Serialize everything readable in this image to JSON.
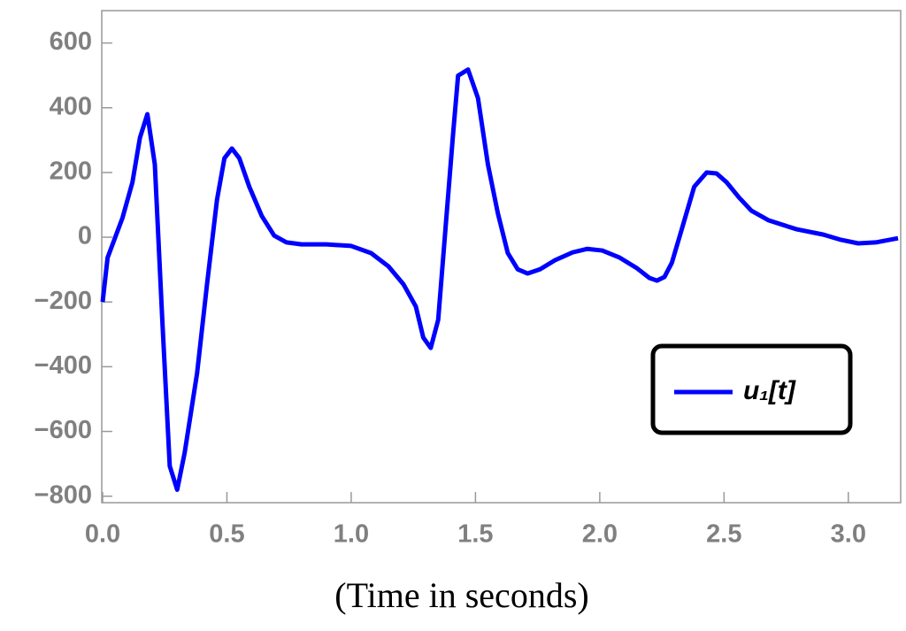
{
  "chart_data": {
    "type": "line",
    "xlabel": "(Time in seconds)",
    "xlim": [
      0,
      3.2
    ],
    "ylim": [
      -820,
      700
    ],
    "xticks": [
      {
        "value": 0,
        "label": "0.0"
      },
      {
        "value": 0.5,
        "label": "0.5"
      },
      {
        "value": 1,
        "label": "1.0"
      },
      {
        "value": 1.5,
        "label": "1.5"
      },
      {
        "value": 2,
        "label": "2.0"
      },
      {
        "value": 2.5,
        "label": "2.5"
      },
      {
        "value": 3,
        "label": "3.0"
      }
    ],
    "yticks": [
      {
        "value": -800,
        "label": "−800"
      },
      {
        "value": -600,
        "label": "−600"
      },
      {
        "value": -400,
        "label": "−400"
      },
      {
        "value": -200,
        "label": "−200"
      },
      0,
      200,
      400,
      600
    ],
    "x": [
      0,
      0.02,
      0.08,
      0.12,
      0.15,
      0.18,
      0.21,
      0.24,
      0.27,
      0.3,
      0.33,
      0.38,
      0.42,
      0.46,
      0.49,
      0.52,
      0.55,
      0.59,
      0.64,
      0.69,
      0.74,
      0.8,
      0.9,
      1.0,
      1.08,
      1.15,
      1.21,
      1.26,
      1.29,
      1.32,
      1.35,
      1.38,
      1.41,
      1.43,
      1.47,
      1.51,
      1.55,
      1.59,
      1.63,
      1.67,
      1.71,
      1.76,
      1.82,
      1.89,
      1.95,
      2.01,
      2.08,
      2.15,
      2.2,
      2.23,
      2.26,
      2.29,
      2.33,
      2.38,
      2.43,
      2.47,
      2.51,
      2.56,
      2.61,
      2.68,
      2.79,
      2.9,
      2.97,
      3.04,
      3.11,
      3.2
    ],
    "series": [
      {
        "name": "u₁[t]",
        "color": "#0000ff",
        "values": [
          -200,
          -63,
          60,
          170,
          307,
          380,
          225,
          -255,
          -707,
          -780,
          -666,
          -420,
          -145,
          115,
          244,
          274,
          244,
          156,
          66,
          5,
          -16,
          -22,
          -22,
          -27,
          -49,
          -90,
          -145,
          -214,
          -310,
          -342,
          -255,
          33,
          320,
          499,
          518,
          430,
          225,
          74,
          -49,
          -99,
          -112,
          -99,
          -71,
          -47,
          -36,
          -41,
          -63,
          -96,
          -126,
          -134,
          -123,
          -79,
          25,
          156,
          200,
          197,
          170,
          123,
          82,
          52,
          25,
          8,
          -8,
          -19,
          -16,
          -3
        ]
      }
    ]
  }
}
